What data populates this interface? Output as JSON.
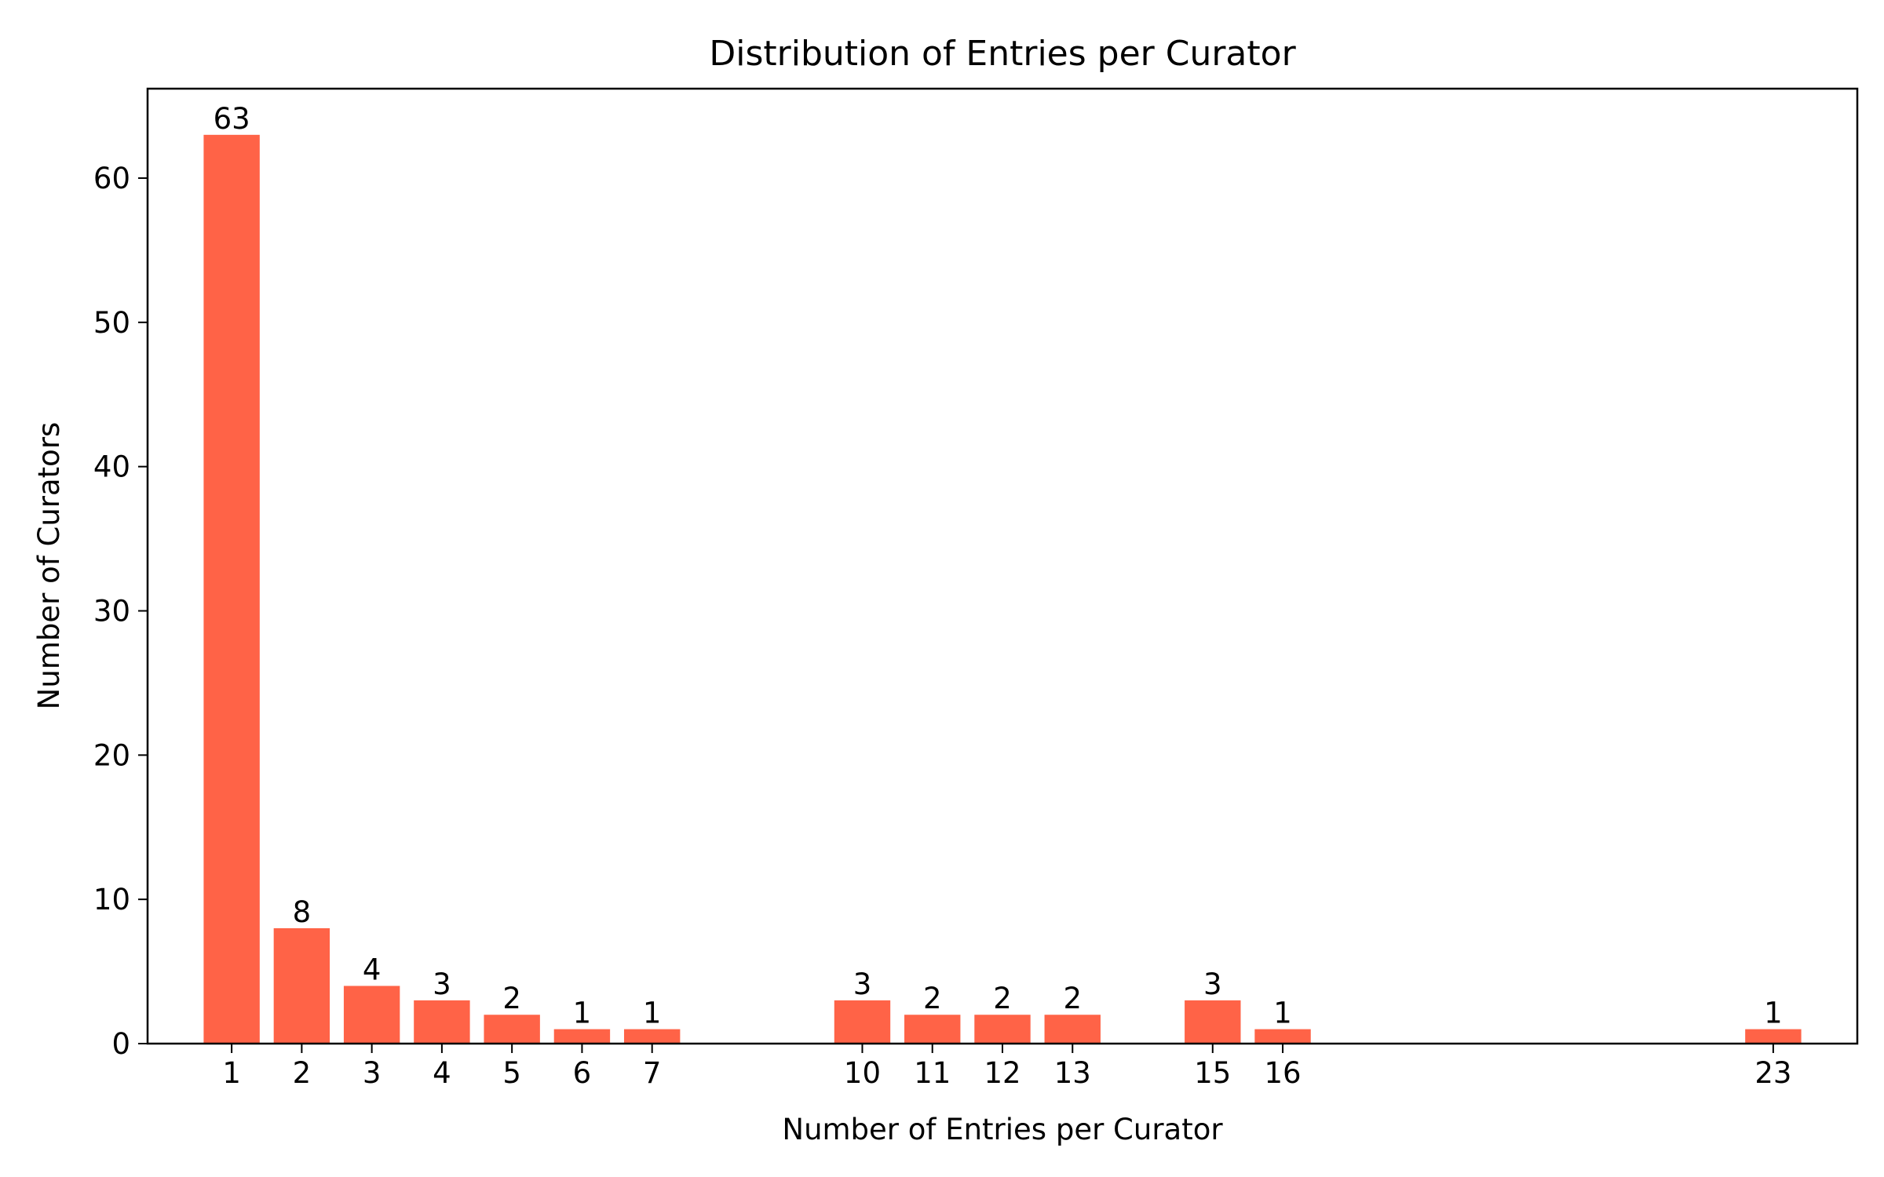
{
  "chart_data": {
    "type": "bar",
    "title": "Distribution of Entries per Curator",
    "xlabel": "Number of Entries per Curator",
    "ylabel": "Number of Curators",
    "x": [
      1,
      2,
      3,
      4,
      5,
      6,
      7,
      10,
      11,
      12,
      13,
      15,
      16,
      23
    ],
    "x_tick_labels": [
      "1",
      "2",
      "3",
      "4",
      "5",
      "6",
      "7",
      "10",
      "11",
      "12",
      "13",
      "15",
      "16",
      "23"
    ],
    "values": [
      63,
      8,
      4,
      3,
      2,
      1,
      1,
      3,
      2,
      2,
      2,
      3,
      1,
      1
    ],
    "data_labels": [
      "63",
      "8",
      "4",
      "3",
      "2",
      "1",
      "1",
      "3",
      "2",
      "2",
      "2",
      "3",
      "1",
      "1"
    ],
    "y_ticks": [
      0,
      10,
      20,
      30,
      40,
      50,
      60
    ],
    "y_tick_labels": [
      "0",
      "10",
      "20",
      "30",
      "40",
      "50",
      "60"
    ],
    "xlim": [
      -0.2,
      24.2
    ],
    "ylim": [
      0,
      66.2
    ],
    "grid": false,
    "bar_color": "#ff6347"
  }
}
